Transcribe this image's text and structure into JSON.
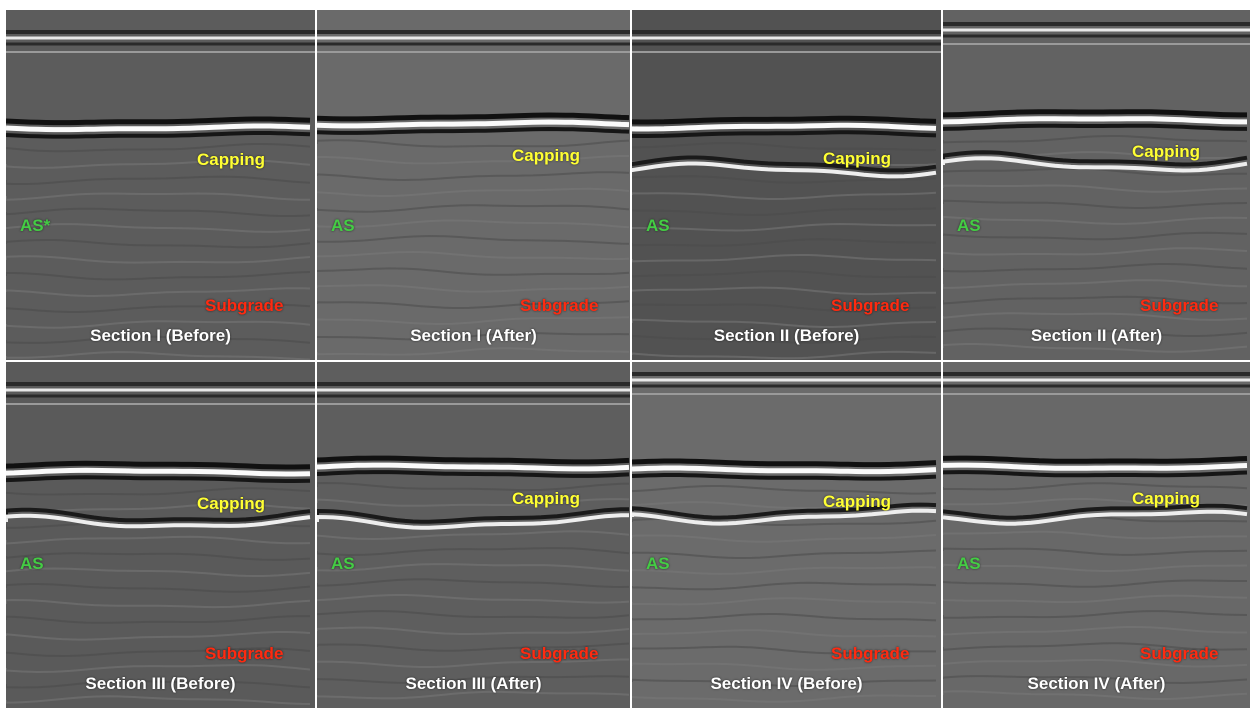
{
  "labels": {
    "capping": "Capping",
    "subgrade": "Subgrade",
    "as_marked": "AS*",
    "as": "AS"
  },
  "colors": {
    "capping": "#ffff33",
    "as": "#44cc44",
    "subgrade": "#ff2a10",
    "title": "#ffffff"
  },
  "panels": [
    {
      "title": "Section I (Before)",
      "as_label": "AS*",
      "background": "#5c5c5c"
    },
    {
      "title": "Section I (After)",
      "as_label": "AS",
      "background": "#6a6a6a"
    },
    {
      "title": "Section II (Before)",
      "as_label": "AS",
      "background": "#525252"
    },
    {
      "title": "Section II (After)",
      "as_label": "AS",
      "background": "#626262"
    },
    {
      "title": "Section III (Before)",
      "as_label": "AS",
      "background": "#5a5a5a"
    },
    {
      "title": "Section III (After)",
      "as_label": "AS",
      "background": "#5e5e5e"
    },
    {
      "title": "Section IV (Before)",
      "as_label": "AS",
      "background": "#6b6b6b"
    },
    {
      "title": "Section IV (After)",
      "as_label": "AS",
      "background": "#686868"
    }
  ]
}
